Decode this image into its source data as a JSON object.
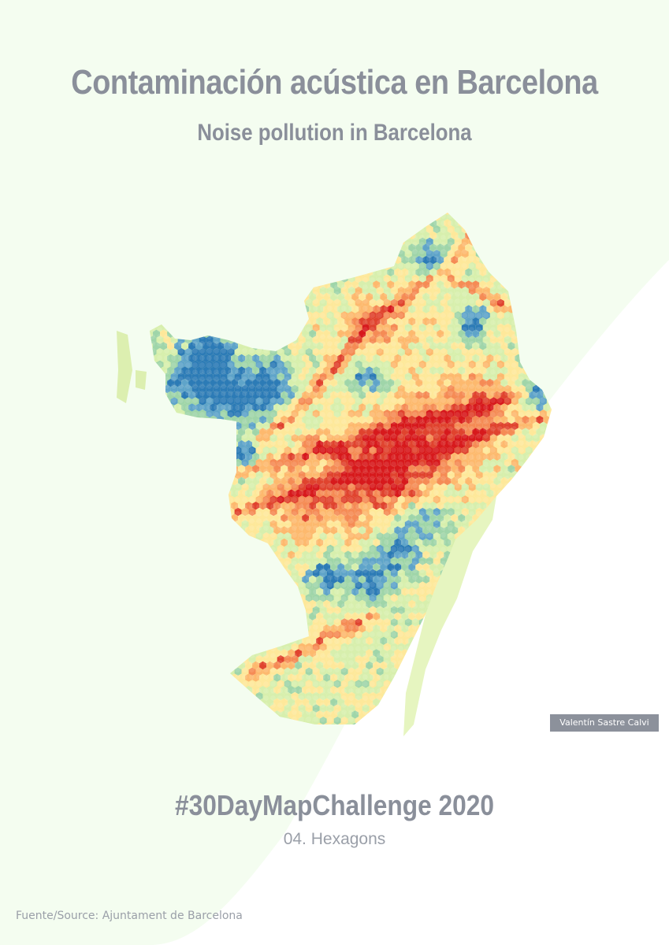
{
  "header": {
    "title": "Contaminación acústica en Barcelona",
    "subtitle": "Noise pollution in Barcelona"
  },
  "footer": {
    "hashtag": "#30DayMapChallenge 2020",
    "day": "04. Hexagons",
    "source": "Fuente/Source: Ajuntament de Barcelona"
  },
  "credit": {
    "author": "Valentín Sastre Calvi"
  },
  "map": {
    "background_color": "#f4fdf0",
    "sea_color": "#ffffff",
    "port_color": "#e6f5c0",
    "palette": [
      "#2c7bb6",
      "#5fa4c9",
      "#9fd5a9",
      "#d7efad",
      "#fee89a",
      "#fdb96e",
      "#f58b55",
      "#e0432e",
      "#d7191c"
    ]
  }
}
